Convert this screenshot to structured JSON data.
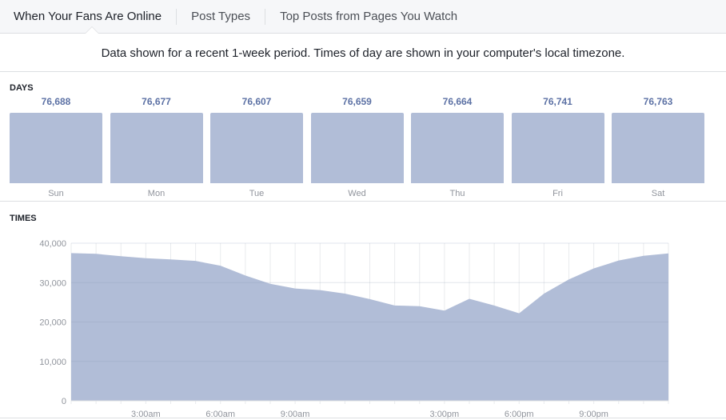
{
  "tabs": [
    {
      "label": "When Your Fans Are Online",
      "active": true
    },
    {
      "label": "Post Types"
    },
    {
      "label": "Top Posts from Pages You Watch"
    }
  ],
  "info": "Data shown for a recent 1-week period. Times of day are shown in your computer's local timezone.",
  "days_label": "DAYS",
  "times_label": "TIMES",
  "colors": {
    "fill": "#b1bdd7",
    "value_text": "#5d72a5"
  },
  "chart_data": [
    {
      "type": "bar",
      "categories": [
        "Sun",
        "Mon",
        "Tue",
        "Wed",
        "Thu",
        "Fri",
        "Sat"
      ],
      "values": [
        "76,688",
        "76,677",
        "76,607",
        "76,659",
        "76,664",
        "76,741",
        "76,763"
      ]
    },
    {
      "type": "area",
      "x": [
        "12:00am",
        "1:00am",
        "2:00am",
        "3:00am",
        "4:00am",
        "5:00am",
        "6:00am",
        "7:00am",
        "8:00am",
        "9:00am",
        "10:00am",
        "11:00am",
        "12:00pm",
        "1:00pm",
        "2:00pm",
        "3:00pm",
        "4:00pm",
        "5:00pm",
        "6:00pm",
        "7:00pm",
        "8:00pm",
        "9:00pm",
        "10:00pm",
        "11:00pm",
        "12:00am"
      ],
      "values": [
        37500,
        37300,
        36700,
        36200,
        35900,
        35500,
        34300,
        31800,
        29700,
        28500,
        28100,
        27200,
        25800,
        24200,
        24000,
        22900,
        25900,
        24200,
        22200,
        27200,
        30800,
        33600,
        35600,
        36800,
        37400
      ],
      "ylim": [
        0,
        40000
      ],
      "yticks": [
        "0",
        "10,000",
        "20,000",
        "30,000",
        "40,000"
      ],
      "xtick_labels": {
        "3": "3:00am",
        "6": "6:00am",
        "9": "9:00am",
        "15": "3:00pm",
        "18": "6:00pm",
        "21": "9:00pm"
      },
      "grid": true
    }
  ]
}
